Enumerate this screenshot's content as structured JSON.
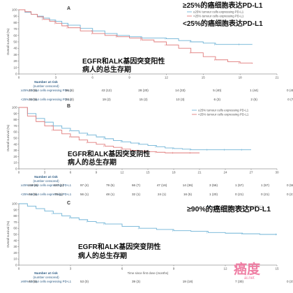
{
  "chart_data": [
    {
      "panel": "A",
      "type": "line",
      "ylabel": "Overall survival (%)",
      "xticks": [
        0,
        3,
        6,
        9,
        12,
        15,
        18,
        21
      ],
      "yticks": [
        0,
        10,
        20,
        30,
        40,
        50,
        60,
        70,
        80,
        90,
        100
      ],
      "xlim": [
        0,
        21
      ],
      "ylim": [
        0,
        100
      ],
      "legend": [
        "≥25% tumour cells expressing PD-L1",
        "<25% tumour cells expressing PD-L1"
      ],
      "annotations": [
        "≥25%的癌细胞表达PD-L1",
        "<25%的癌细胞表达PD-L1",
        "EGFR和ALK基因突变阳性",
        "病人的总生存期"
      ],
      "series": [
        {
          "name": "≥25% tumour cells expressing PD-L1",
          "color": "#6fb3d6",
          "x": [
            0,
            0.5,
            1,
            1.5,
            2,
            2.5,
            3,
            3.5,
            4,
            5,
            6,
            7,
            8,
            9,
            10,
            11,
            12,
            13,
            14,
            15,
            16,
            17,
            18,
            19
          ],
          "y": [
            100,
            96,
            93,
            90,
            87,
            84,
            82,
            79,
            76,
            71,
            67,
            63,
            60,
            58,
            56,
            56,
            55,
            52,
            50,
            48,
            46,
            46,
            46,
            46
          ]
        },
        {
          "name": "<25% tumour cells expressing PD-L1",
          "color": "#e07b7b",
          "x": [
            0,
            0.5,
            1,
            1.5,
            2,
            2.5,
            3,
            3.5,
            4,
            5,
            6,
            7,
            8,
            9,
            10,
            11,
            12,
            13,
            14,
            15,
            16,
            17,
            18,
            19
          ],
          "y": [
            100,
            97,
            93,
            89,
            85,
            82,
            79,
            75,
            72,
            67,
            63,
            60,
            58,
            56,
            53,
            50,
            45,
            40,
            33,
            27,
            22,
            19,
            17,
            16
          ]
        }
      ],
      "risk_title": "Number at risk",
      "risk_subtitle": "(number censored)",
      "risk_rows": [
        {
          "label": "≥25% tumour cells expressing PD-L1",
          "values": [
            "27 (0)",
            "55 (6)",
            "43 (12)",
            "28 (20)",
            "14 (33)",
            "5 (40)",
            "1 (44)",
            "0 (45)"
          ]
        },
        {
          "label": "<25% tumour cells expressing PD-L1",
          "values": [
            "30 (0)",
            "23 (0)",
            "19 (2)",
            "15 (2)",
            "10 (3)",
            "6 (3)",
            "2 (5)",
            "0 (7)"
          ]
        }
      ]
    },
    {
      "panel": "B",
      "type": "line",
      "ylabel": "Overall survival (%)",
      "xticks": [
        0,
        3,
        6,
        9,
        12,
        15,
        18,
        21,
        24,
        27,
        30
      ],
      "yticks": [
        0,
        10,
        20,
        30,
        40,
        50,
        60,
        70,
        80,
        90,
        100
      ],
      "xlim": [
        0,
        30
      ],
      "ylim": [
        0,
        100
      ],
      "legend": [
        "≥25% tumour cells expressing PD-L1",
        "<25% tumour cells expressing PD-L1"
      ],
      "annotations": [
        "EGFR和ALK基因突变阴性",
        "病人的总生存期"
      ],
      "series": [
        {
          "name": "≥25% tumour cells expressing PD-L1",
          "color": "#6fb3d6",
          "x": [
            0,
            1,
            2,
            3,
            4,
            5,
            6,
            7,
            8,
            9,
            10,
            11,
            12,
            13,
            14,
            15,
            16,
            17,
            18,
            19,
            20,
            21,
            22,
            23,
            24,
            25,
            26,
            27
          ],
          "y": [
            100,
            90,
            82,
            76,
            70,
            66,
            62,
            58,
            55,
            52,
            49,
            46,
            44,
            42,
            40,
            38,
            36,
            34,
            33,
            32,
            31,
            31,
            31,
            31,
            31,
            31,
            31,
            31
          ]
        },
        {
          "name": "<25% tumour cells expressing PD-L1",
          "color": "#e07b7b",
          "x": [
            0,
            1,
            2,
            3,
            4,
            5,
            6,
            7,
            8,
            9,
            10,
            11,
            12,
            13,
            14,
            15,
            16,
            17,
            18,
            19,
            20,
            21
          ],
          "y": [
            100,
            86,
            77,
            70,
            63,
            57,
            52,
            47,
            43,
            40,
            37,
            35,
            32,
            30,
            29,
            28,
            27,
            26,
            26,
            26,
            26,
            26
          ]
        }
      ],
      "risk_title": "Number at risk",
      "risk_subtitle": "(number censored)",
      "risk_rows": [
        {
          "label": "≥25% tumour cells expressing PD-L1",
          "values": [
            "149 (0)",
            "127 (1)",
            "97 (4)",
            "79 (5)",
            "66 (7)",
            "47 (16)",
            "14 (36)",
            "3 (56)",
            "1 (57)",
            "1 (57)",
            "0 (58)"
          ]
        },
        {
          "label": "<25% tumour cells expressing PD-L1",
          "values": [
            "94 (0)",
            "75 (1)",
            "56 (1)",
            "48 (1)",
            "32 (1)",
            "24 (1)",
            "16 (5)",
            "1 (20)",
            "0 (21)",
            "0 (21)",
            "0 (21)"
          ]
        }
      ]
    },
    {
      "panel": "C",
      "type": "line",
      "ylabel": "Overall survival (%)",
      "xlabel": "Time since first dose (months)",
      "xticks": [
        0,
        3,
        6,
        9,
        12,
        15
      ],
      "yticks": [
        0,
        10,
        20,
        30,
        40,
        50,
        60,
        70,
        80,
        90,
        100
      ],
      "xlim": [
        0,
        15
      ],
      "ylim": [
        0,
        100
      ],
      "legend": [
        "≥90% tumour cells expressing PD-L1"
      ],
      "annotations": [
        "≥90%的癌细胞表达PD-L1",
        "EGFR和ALK基因突变阴性",
        "病人的总生存期"
      ],
      "series": [
        {
          "name": "≥90% tumour cells expressing PD-L1",
          "color": "#6fb3d6",
          "x": [
            0,
            0.5,
            1,
            1.5,
            2,
            2.5,
            3,
            3.5,
            4,
            4.5,
            5,
            6,
            7,
            8,
            9,
            10,
            11,
            12,
            13,
            14,
            15
          ],
          "y": [
            100,
            96,
            92,
            88,
            84,
            80,
            77,
            74,
            71,
            69,
            67,
            63,
            60,
            58,
            56,
            55,
            53,
            52,
            51,
            50,
            50
          ]
        }
      ],
      "risk_title": "Number at risk",
      "risk_subtitle": "(number censored)",
      "risk_rows": [
        {
          "label": "≥90% tumour cells expressing PD-L1",
          "values": [
            "67 (0)",
            "53 (0)",
            "39 (3)",
            "19 (18)",
            "7 (30)",
            "0 (37)"
          ]
        }
      ]
    }
  ],
  "watermark": {
    "main": "癌度",
    "sub": "ai.net"
  }
}
